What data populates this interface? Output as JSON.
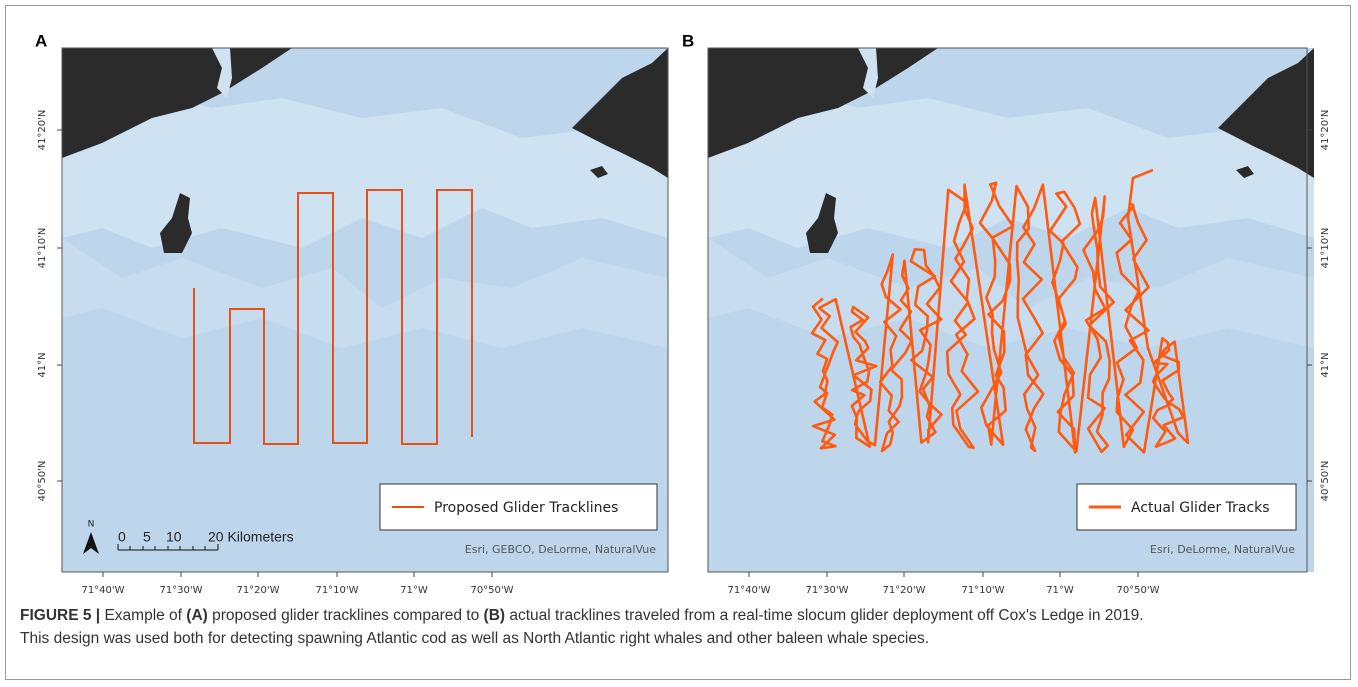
{
  "panels": [
    {
      "label": "A",
      "x_labels": [
        "71°40'W",
        "71°30'W",
        "71°20'W",
        "71°10'W",
        "71°W",
        "70°50'W"
      ],
      "y_labels": [
        "41°20'N",
        "41°10'N",
        "41°N",
        "40°50'N"
      ],
      "legend": "Proposed Glider Tracklines",
      "attribution": "Esri, GEBCO, DeLorme, NaturalVue",
      "north": "N",
      "scale_labels": [
        "0",
        "5",
        "10",
        "20 Kilometers"
      ]
    },
    {
      "label": "B",
      "x_labels": [
        "71°40'W",
        "71°30'W",
        "71°20'W",
        "71°10'W",
        "71°W",
        "70°50'W"
      ],
      "y_labels": [
        "41°20'N",
        "41°10'N",
        "41°N",
        "40°50'N"
      ],
      "legend": "Actual Glider Tracks",
      "attribution": "Esri, DeLorme, NaturalVue"
    }
  ],
  "caption": [
    [
      {
        "text": "FIGURE 5 |",
        "bold": true
      },
      {
        "text": " Example of ",
        "bold": false
      },
      {
        "text": "(A)",
        "bold": true
      },
      {
        "text": " proposed glider tracklines compared to ",
        "bold": false
      },
      {
        "text": "(B)",
        "bold": true
      },
      {
        "text": " actual tracklines traveled from a real-time slocum glider deployment off Cox's Ledge in 2019.",
        "bold": false
      }
    ],
    [
      {
        "text": "This design was used both for detecting spawning Atlantic cod as well as North Atlantic right whales and other baleen whale species.",
        "bold": false
      }
    ]
  ]
}
